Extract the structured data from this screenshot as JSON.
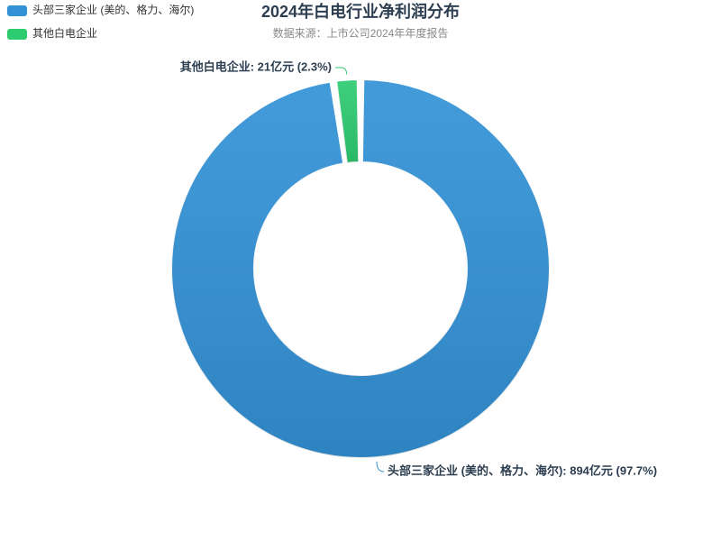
{
  "chart_data": {
    "type": "donut",
    "title": "2024年白电行业净利润分布",
    "subtitle": "数据来源：上市公司2024年年度报告",
    "categories": [
      "头部三家企业 (美的、格力、海尔)",
      "其他白电企业"
    ],
    "values": [
      894,
      21
    ],
    "value_labels": [
      "头部三家企业 (美的、格力、海尔): 894亿元 (97.7%)",
      "其他白电企业: 21亿元 (2.3%)"
    ],
    "colors": [
      "#3392d6",
      "#2ecc71"
    ],
    "legend": "top-left"
  }
}
